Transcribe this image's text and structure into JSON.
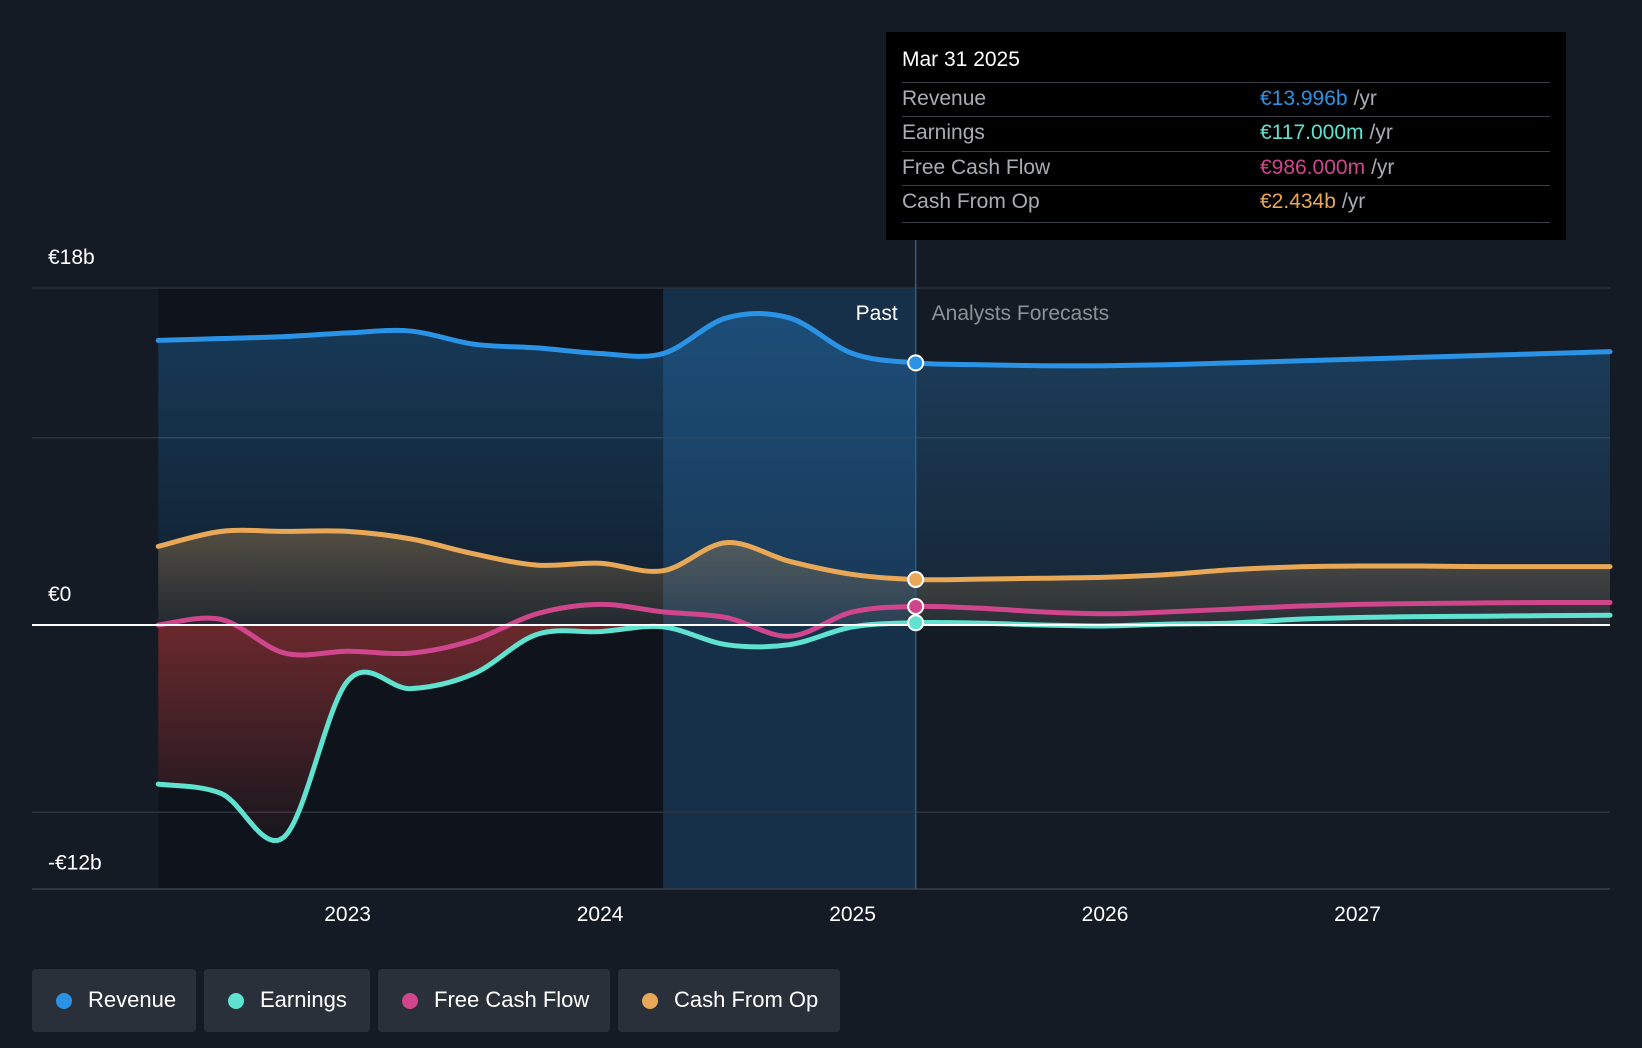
{
  "tooltip": {
    "date": "Mar 31 2025",
    "rows": [
      {
        "label": "Revenue",
        "value": "€13.996b",
        "unit": "/yr",
        "color": "#2a93e6"
      },
      {
        "label": "Earnings",
        "value": "€117.000m",
        "unit": "/yr",
        "color": "#5fe3d0"
      },
      {
        "label": "Free Cash Flow",
        "value": "€986.000m",
        "unit": "/yr",
        "color": "#d0468c"
      },
      {
        "label": "Cash From Op",
        "value": "€2.434b",
        "unit": "/yr",
        "color": "#e8a857"
      }
    ]
  },
  "legend": [
    {
      "label": "Revenue",
      "color": "#2a93e6"
    },
    {
      "label": "Earnings",
      "color": "#5fe3d0"
    },
    {
      "label": "Free Cash Flow",
      "color": "#d0468c"
    },
    {
      "label": "Cash From Op",
      "color": "#e8a857"
    }
  ],
  "chart_data": {
    "type": "line",
    "title": "",
    "xlabel": "",
    "ylabel": "",
    "y_tick_labels": [
      "€18b",
      "€0",
      "-€12b"
    ],
    "y_ticks": [
      18,
      0,
      -12
    ],
    "x_tick_labels": [
      "2023",
      "2024",
      "2025",
      "2026",
      "2027"
    ],
    "x_ticks": [
      2023,
      2024,
      2025,
      2026,
      2027
    ],
    "xlim": [
      2021.75,
      2028.0
    ],
    "ylim": [
      -14.1,
      18
    ],
    "region_labels": {
      "past": "Past",
      "forecast": "Analysts Forecasts"
    },
    "past_end": 2025.25,
    "highlight_start": 2024.25,
    "series": [
      {
        "name": "Revenue",
        "color": "#2a93e6",
        "x": [
          2022.25,
          2022.5,
          2022.75,
          2023.0,
          2023.25,
          2023.5,
          2023.75,
          2024.0,
          2024.25,
          2024.5,
          2024.75,
          2025.0,
          2025.25,
          2025.5,
          2025.75,
          2026.0,
          2026.25,
          2026.5,
          2026.75,
          2027.0,
          2027.25,
          2027.5,
          2027.75,
          2028.0
        ],
        "values": [
          15.2,
          15.3,
          15.4,
          15.6,
          15.7,
          15.0,
          14.8,
          14.5,
          14.5,
          16.4,
          16.4,
          14.5,
          14.0,
          13.9,
          13.85,
          13.85,
          13.9,
          14.0,
          14.1,
          14.2,
          14.3,
          14.4,
          14.5,
          14.6
        ]
      },
      {
        "name": "Cash From Op",
        "color": "#e8a857",
        "x": [
          2022.25,
          2022.5,
          2022.75,
          2023.0,
          2023.25,
          2023.5,
          2023.75,
          2024.0,
          2024.25,
          2024.5,
          2024.75,
          2025.0,
          2025.25,
          2025.5,
          2025.75,
          2026.0,
          2026.25,
          2026.5,
          2026.75,
          2027.0,
          2027.25,
          2027.5,
          2027.75,
          2028.0
        ],
        "values": [
          4.2,
          5.0,
          5.0,
          5.0,
          4.6,
          3.8,
          3.2,
          3.3,
          2.9,
          4.4,
          3.4,
          2.7,
          2.43,
          2.45,
          2.5,
          2.55,
          2.7,
          2.95,
          3.1,
          3.15,
          3.15,
          3.12,
          3.12,
          3.12
        ]
      },
      {
        "name": "Free Cash Flow",
        "color": "#d0468c",
        "x": [
          2022.25,
          2022.5,
          2022.75,
          2023.0,
          2023.25,
          2023.5,
          2023.75,
          2024.0,
          2024.25,
          2024.5,
          2024.75,
          2025.0,
          2025.25,
          2025.5,
          2025.75,
          2026.0,
          2026.25,
          2026.5,
          2026.75,
          2027.0,
          2027.25,
          2027.5,
          2027.75,
          2028.0
        ],
        "values": [
          0.0,
          0.3,
          -1.5,
          -1.4,
          -1.5,
          -0.8,
          0.6,
          1.1,
          0.7,
          0.4,
          -0.6,
          0.7,
          0.99,
          0.9,
          0.7,
          0.6,
          0.7,
          0.85,
          1.0,
          1.1,
          1.15,
          1.18,
          1.2,
          1.2
        ]
      },
      {
        "name": "Earnings",
        "color": "#5fe3d0",
        "x": [
          2022.25,
          2022.5,
          2022.75,
          2023.0,
          2023.25,
          2023.5,
          2023.75,
          2024.0,
          2024.25,
          2024.5,
          2024.75,
          2025.0,
          2025.25,
          2025.5,
          2025.75,
          2026.0,
          2026.25,
          2026.5,
          2026.75,
          2027.0,
          2027.25,
          2027.5,
          2027.75,
          2028.0
        ],
        "values": [
          -8.5,
          -9.0,
          -11.3,
          -3.0,
          -3.4,
          -2.6,
          -0.5,
          -0.35,
          -0.1,
          -1.05,
          -1.05,
          -0.1,
          0.12,
          0.1,
          0.0,
          -0.05,
          0.05,
          0.1,
          0.3,
          0.4,
          0.45,
          0.47,
          0.5,
          0.52
        ]
      }
    ],
    "markers_at": 2025.25
  }
}
